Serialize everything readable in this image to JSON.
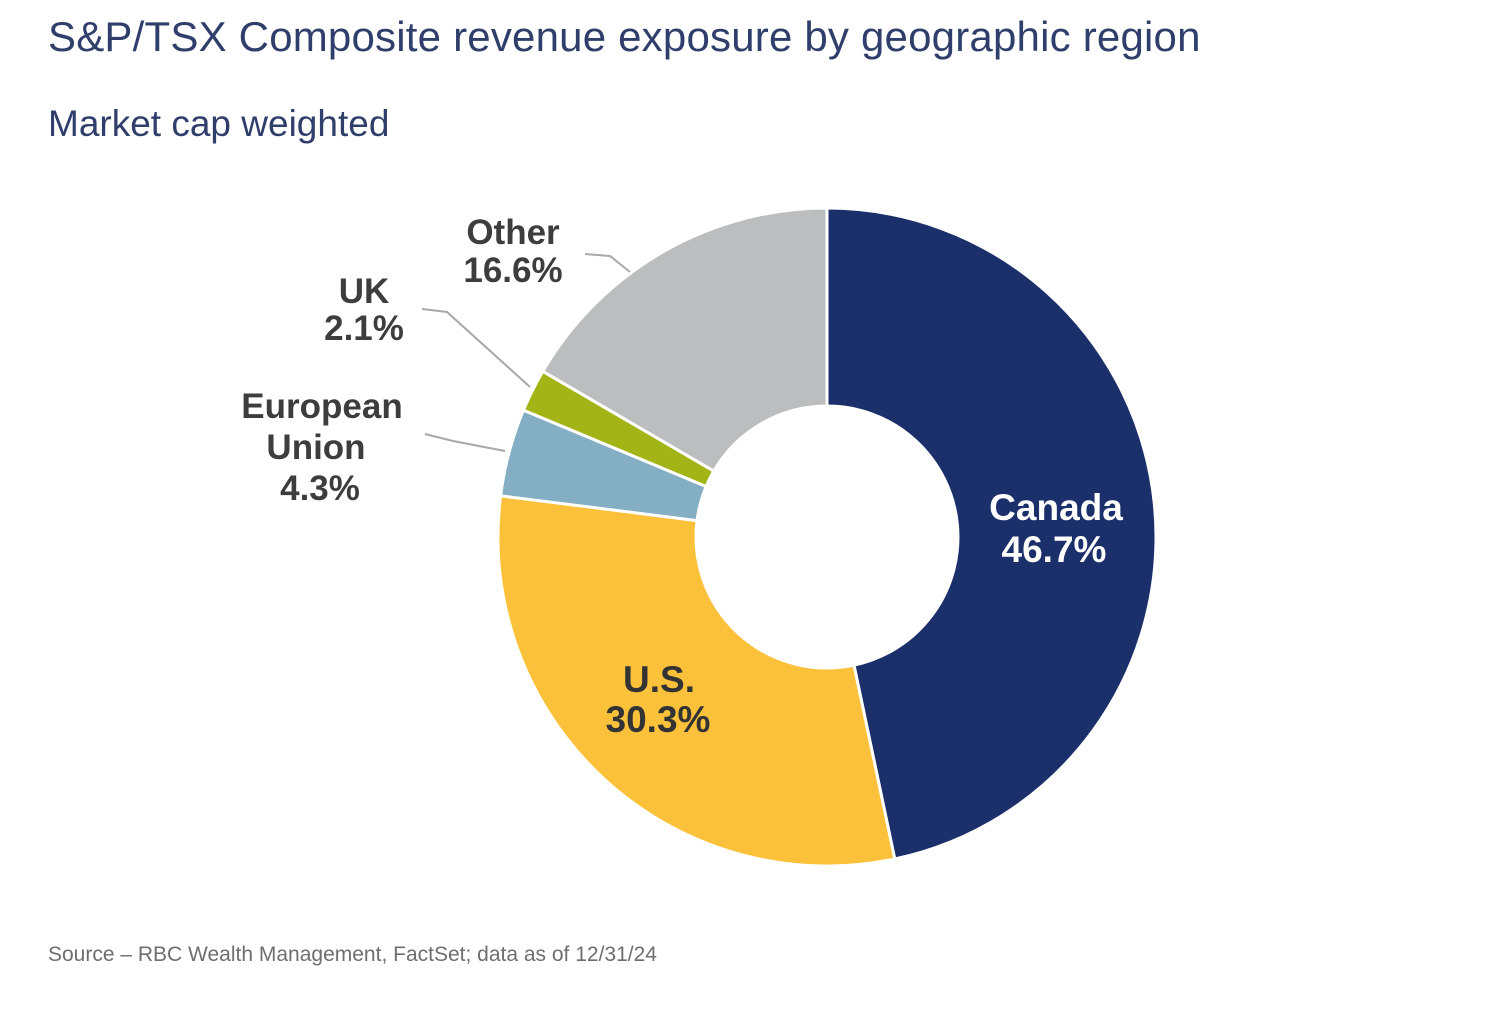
{
  "header": {
    "title": "S&P/TSX Composite revenue exposure by geographic region",
    "subtitle": "Market cap weighted"
  },
  "footer": {
    "source": "Source – RBC Wealth Management, FactSet; data as of 12/31/24"
  },
  "colors": {
    "title_text": "#2f3e6a",
    "outside_label_text": "#3d3d3d",
    "leader_line": "#a8a8a8",
    "slice_separator": "#ffffff",
    "source_text": "#6d6e71"
  },
  "chart_data": {
    "type": "pie",
    "variant": "donut",
    "title": "S&P/TSX Composite revenue exposure by geographic region",
    "subtitle": "Market cap weighted",
    "source": "Source – RBC Wealth Management, FactSet; data as of 12/31/24",
    "units": "percent",
    "start_angle_deg": 0,
    "direction": "clockwise",
    "inner_radius_ratio": 0.4,
    "legend": "none",
    "categories": [
      "Canada",
      "U.S.",
      "European Union",
      "UK",
      "Other"
    ],
    "values": [
      46.7,
      30.3,
      4.3,
      2.1,
      16.6
    ],
    "slices": [
      {
        "name": "Canada",
        "value": 46.7,
        "value_label": "46.7%",
        "label_lines": [
          "Canada",
          "46.7%"
        ],
        "color": "#1b2f6b",
        "label_color": "#ffffff",
        "label_placement": "inside"
      },
      {
        "name": "U.S.",
        "value": 30.3,
        "value_label": "30.3%",
        "label_lines": [
          "U.S.",
          "30.3%"
        ],
        "color": "#fbc13a",
        "label_color": "#333333",
        "label_placement": "inside"
      },
      {
        "name": "European Union",
        "value": 4.3,
        "value_label": "4.3%",
        "label_lines": [
          "European",
          "Union",
          "4.3%"
        ],
        "color": "#84aec3",
        "label_color": "#3d3d3d",
        "label_placement": "outside"
      },
      {
        "name": "UK",
        "value": 2.1,
        "value_label": "2.1%",
        "label_lines": [
          "UK",
          "2.1%"
        ],
        "color": "#a3b417",
        "label_color": "#3d3d3d",
        "label_placement": "outside"
      },
      {
        "name": "Other",
        "value": 16.6,
        "value_label": "16.6%",
        "label_lines": [
          "Other",
          "16.6%"
        ],
        "color": "#bbbdbf",
        "label_color": "#3d3d3d",
        "label_placement": "outside"
      }
    ]
  }
}
